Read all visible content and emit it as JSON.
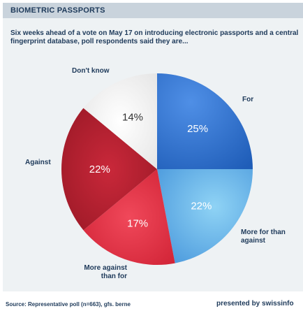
{
  "header": {
    "title": "BIOMETRIC PASSPORTS"
  },
  "subtitle": "Six weeks ahead of a vote on May 17 on introducing electronic passports and a central fingerprint database, poll respondents said they are...",
  "chart_data": {
    "type": "pie",
    "title": "BIOMETRIC PASSPORTS",
    "subtitle": "Six weeks ahead of a vote on May 17 on introducing electronic passports and a central fingerprint database, poll respondents said they are...",
    "slices": [
      {
        "label": "For",
        "value": 25,
        "value_label": "25%",
        "color": "#2a6fd1"
      },
      {
        "label": "More for than against",
        "value": 22,
        "value_label": "22%",
        "color": "#5aa6e3"
      },
      {
        "label": "More against than for",
        "value": 17,
        "value_label": "17%",
        "color": "#e13245"
      },
      {
        "label": "Against",
        "value": 22,
        "value_label": "22%",
        "color": "#b81f2d"
      },
      {
        "label": "Don't know",
        "value": 14,
        "value_label": "14%",
        "color": "#f2f2f2"
      }
    ],
    "legend": "none"
  },
  "footer": {
    "source": "Source: Representative poll (n=663), gfs. berne",
    "credit": "presented by swissinfo"
  }
}
